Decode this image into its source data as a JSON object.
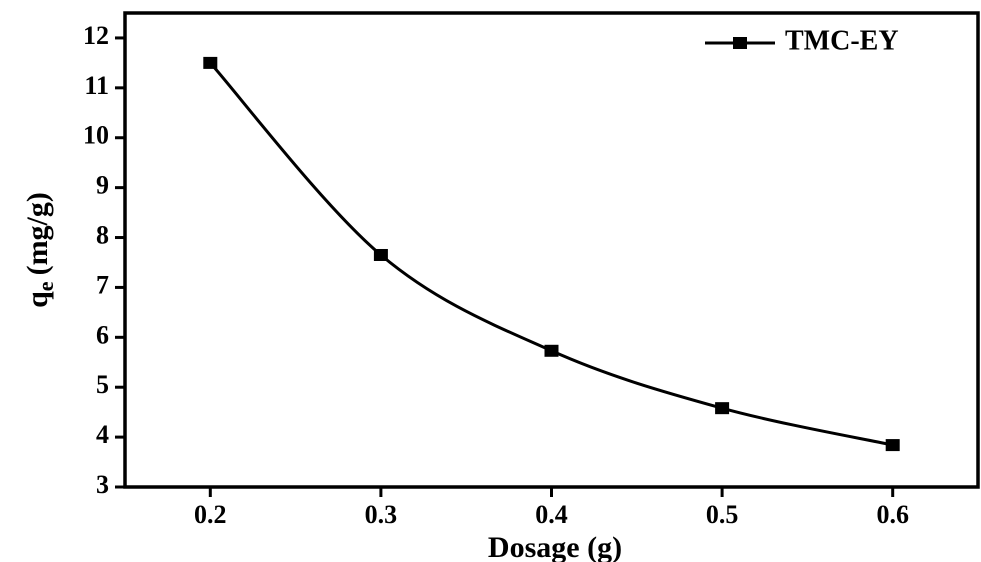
{
  "chart_data": {
    "type": "line",
    "x_label": "Dosage (g)",
    "y_label": [
      "q",
      "e",
      "(mg/g)"
    ],
    "x": [
      0.2,
      0.3,
      0.4,
      0.5,
      0.6
    ],
    "series": [
      {
        "name": "TMC-EY",
        "color": "#000000",
        "values": [
          11.5,
          7.65,
          5.73,
          4.58,
          3.84
        ]
      }
    ],
    "xlim": [
      0.15,
      0.65
    ],
    "xticks": [
      0.2,
      0.3,
      0.4,
      0.5,
      0.6
    ],
    "ylim": [
      3,
      12.5
    ],
    "yticks": [
      3,
      4,
      5,
      6,
      7,
      8,
      9,
      10,
      11,
      12
    ],
    "smooth": true,
    "legend": "upper right"
  }
}
